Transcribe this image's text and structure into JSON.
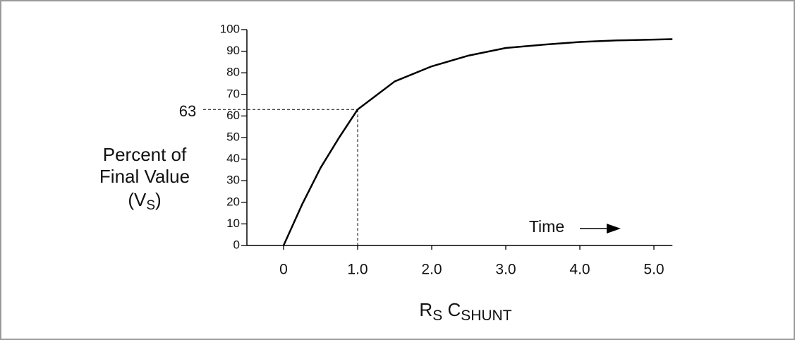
{
  "chart_data": {
    "type": "line",
    "x": [
      0,
      0.25,
      0.5,
      0.75,
      1,
      1.5,
      2,
      2.5,
      3,
      3.5,
      4,
      4.5,
      5,
      5.25
    ],
    "values": [
      0,
      19,
      36,
      50,
      63,
      76,
      83,
      88,
      91.5,
      93,
      94.3,
      95,
      95.4,
      95.6
    ],
    "color": "#000000",
    "xlim": [
      -0.5,
      5.25
    ],
    "ylim": [
      0,
      100
    ],
    "xticks": [
      0,
      {
        "value": 1,
        "label": "1.0"
      },
      {
        "value": 2,
        "label": "2.0"
      },
      {
        "value": 3,
        "label": "3.0"
      },
      {
        "value": 4,
        "label": "4.0"
      },
      {
        "value": 5,
        "label": "5.0"
      }
    ],
    "yticks": [
      0,
      10,
      20,
      30,
      40,
      50,
      60,
      70,
      80,
      90,
      100
    ],
    "ylabel": [
      "Percent of",
      "Final Value"
    ],
    "ylabel_symbol": [
      "(V",
      "S",
      ")"
    ],
    "xlabel": [
      "R",
      "S",
      " C",
      "SHUNT"
    ],
    "reference": {
      "x": 1,
      "y": 63,
      "label": "63"
    },
    "annotation": "Time"
  }
}
